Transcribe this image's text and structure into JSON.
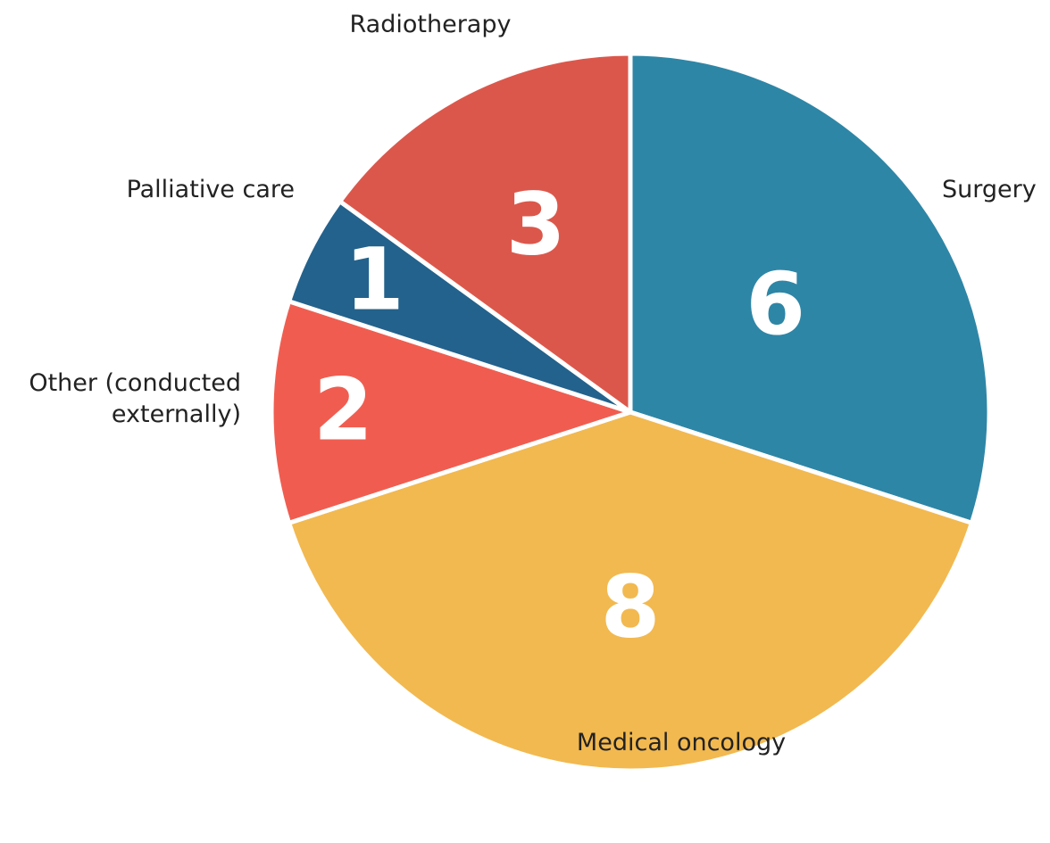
{
  "chart_data": {
    "type": "pie",
    "categories": [
      "Surgery",
      "Medical oncology",
      "Other (conducted externally)",
      "Palliative care",
      "Radiotherapy"
    ],
    "values": [
      6,
      8,
      2,
      1,
      3
    ],
    "colors": [
      "#2e86a6",
      "#f2b950",
      "#f05d50",
      "#23628c",
      "#dc574b"
    ]
  }
}
